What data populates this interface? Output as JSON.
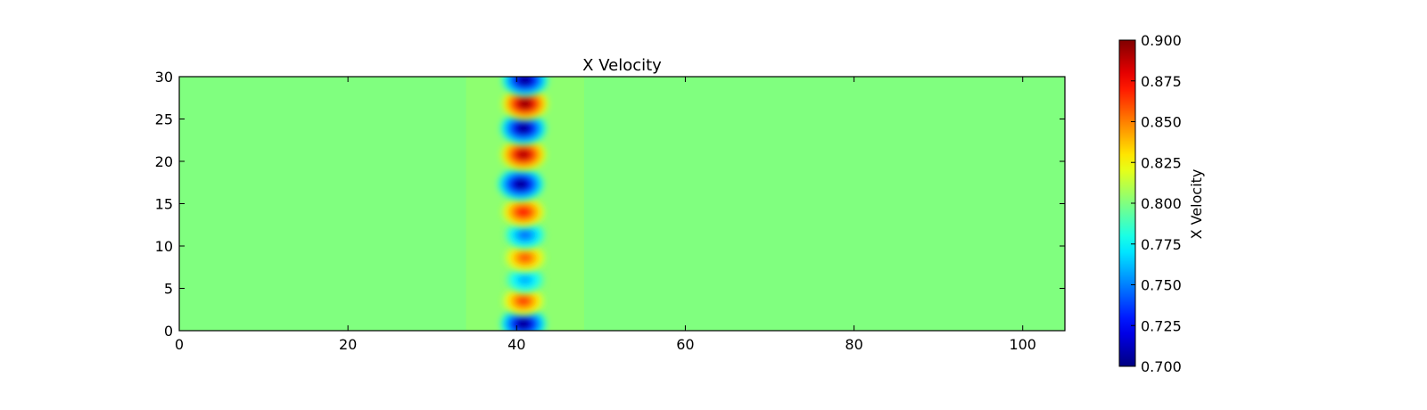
{
  "chart_data": {
    "type": "heatmap",
    "title": "X Velocity",
    "xlabel": "",
    "ylabel": "",
    "xlim": [
      0,
      105
    ],
    "ylim": [
      0,
      30
    ],
    "x_ticks": [
      0,
      20,
      40,
      60,
      80,
      100
    ],
    "y_ticks": [
      0,
      5,
      10,
      15,
      20,
      25,
      30
    ],
    "colormap": "jet",
    "background_value": 0.8,
    "colorbar": {
      "label": "X Velocity",
      "min": 0.7,
      "max": 0.9,
      "ticks": [
        "0.700",
        "0.725",
        "0.750",
        "0.775",
        "0.800",
        "0.825",
        "0.850",
        "0.875",
        "0.900"
      ]
    },
    "features": [
      {
        "x": 40.8,
        "y": 0.8,
        "value": 0.7
      },
      {
        "x": 40.8,
        "y": 3.5,
        "value": 0.865
      },
      {
        "x": 41.0,
        "y": 6.0,
        "value": 0.758
      },
      {
        "x": 41.0,
        "y": 8.6,
        "value": 0.86
      },
      {
        "x": 41.0,
        "y": 11.3,
        "value": 0.745
      },
      {
        "x": 40.8,
        "y": 14.0,
        "value": 0.875
      },
      {
        "x": 40.5,
        "y": 17.3,
        "value": 0.7
      },
      {
        "x": 40.8,
        "y": 20.8,
        "value": 0.893
      },
      {
        "x": 40.8,
        "y": 23.9,
        "value": 0.7
      },
      {
        "x": 41.0,
        "y": 26.8,
        "value": 0.9
      },
      {
        "x": 41.0,
        "y": 29.6,
        "value": 0.7
      }
    ]
  }
}
